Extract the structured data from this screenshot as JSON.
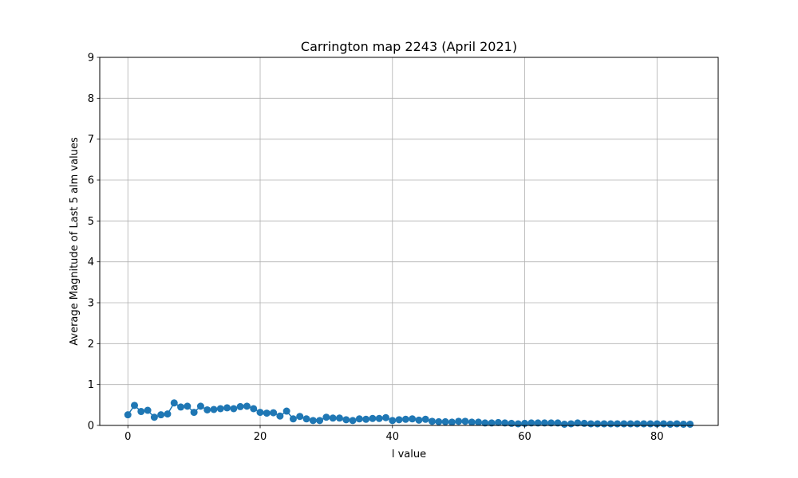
{
  "chart_data": {
    "type": "line",
    "title": "Carrington map 2243 (April 2021)",
    "xlabel": "l value",
    "ylabel": "Average Magnitude of Last 5 alm values",
    "xlim": [
      -4.25,
      89.25
    ],
    "ylim": [
      0,
      9
    ],
    "xticks": [
      0,
      20,
      40,
      60,
      80
    ],
    "yticks": [
      0,
      1,
      2,
      3,
      4,
      5,
      6,
      7,
      8,
      9
    ],
    "grid": true,
    "marker": "circle",
    "color": "#1f77b4",
    "series": [
      {
        "x": [
          0,
          1,
          2,
          3,
          4,
          5,
          6,
          7,
          8,
          9,
          10,
          11,
          12,
          13,
          14,
          15,
          16,
          17,
          18,
          19,
          20,
          21,
          22,
          23,
          24,
          25,
          26,
          27,
          28,
          29,
          30,
          31,
          32,
          33,
          34,
          35,
          36,
          37,
          38,
          39,
          40,
          41,
          42,
          43,
          44,
          45,
          46,
          47,
          48,
          49,
          50,
          51,
          52,
          53,
          54,
          55,
          56,
          57,
          58,
          59,
          60,
          61,
          62,
          63,
          64,
          65,
          66,
          67,
          68,
          69,
          70,
          71,
          72,
          73,
          74,
          75,
          76,
          77,
          78,
          79,
          80,
          81,
          82,
          83,
          84,
          85
        ],
        "values": [
          0.26,
          0.49,
          0.34,
          0.37,
          0.2,
          0.26,
          0.28,
          0.55,
          0.45,
          0.47,
          0.32,
          0.47,
          0.38,
          0.39,
          0.41,
          0.43,
          0.41,
          0.46,
          0.47,
          0.41,
          0.32,
          0.3,
          0.31,
          0.23,
          0.35,
          0.16,
          0.22,
          0.16,
          0.12,
          0.12,
          0.2,
          0.18,
          0.18,
          0.14,
          0.12,
          0.16,
          0.15,
          0.17,
          0.17,
          0.19,
          0.12,
          0.14,
          0.15,
          0.16,
          0.13,
          0.15,
          0.1,
          0.09,
          0.09,
          0.08,
          0.1,
          0.1,
          0.08,
          0.08,
          0.06,
          0.06,
          0.07,
          0.06,
          0.05,
          0.04,
          0.05,
          0.06,
          0.06,
          0.06,
          0.06,
          0.06,
          0.03,
          0.04,
          0.06,
          0.05,
          0.04,
          0.04,
          0.04,
          0.04,
          0.04,
          0.04,
          0.04,
          0.04,
          0.04,
          0.04,
          0.04,
          0.04,
          0.03,
          0.04,
          0.03,
          0.03
        ]
      }
    ]
  }
}
